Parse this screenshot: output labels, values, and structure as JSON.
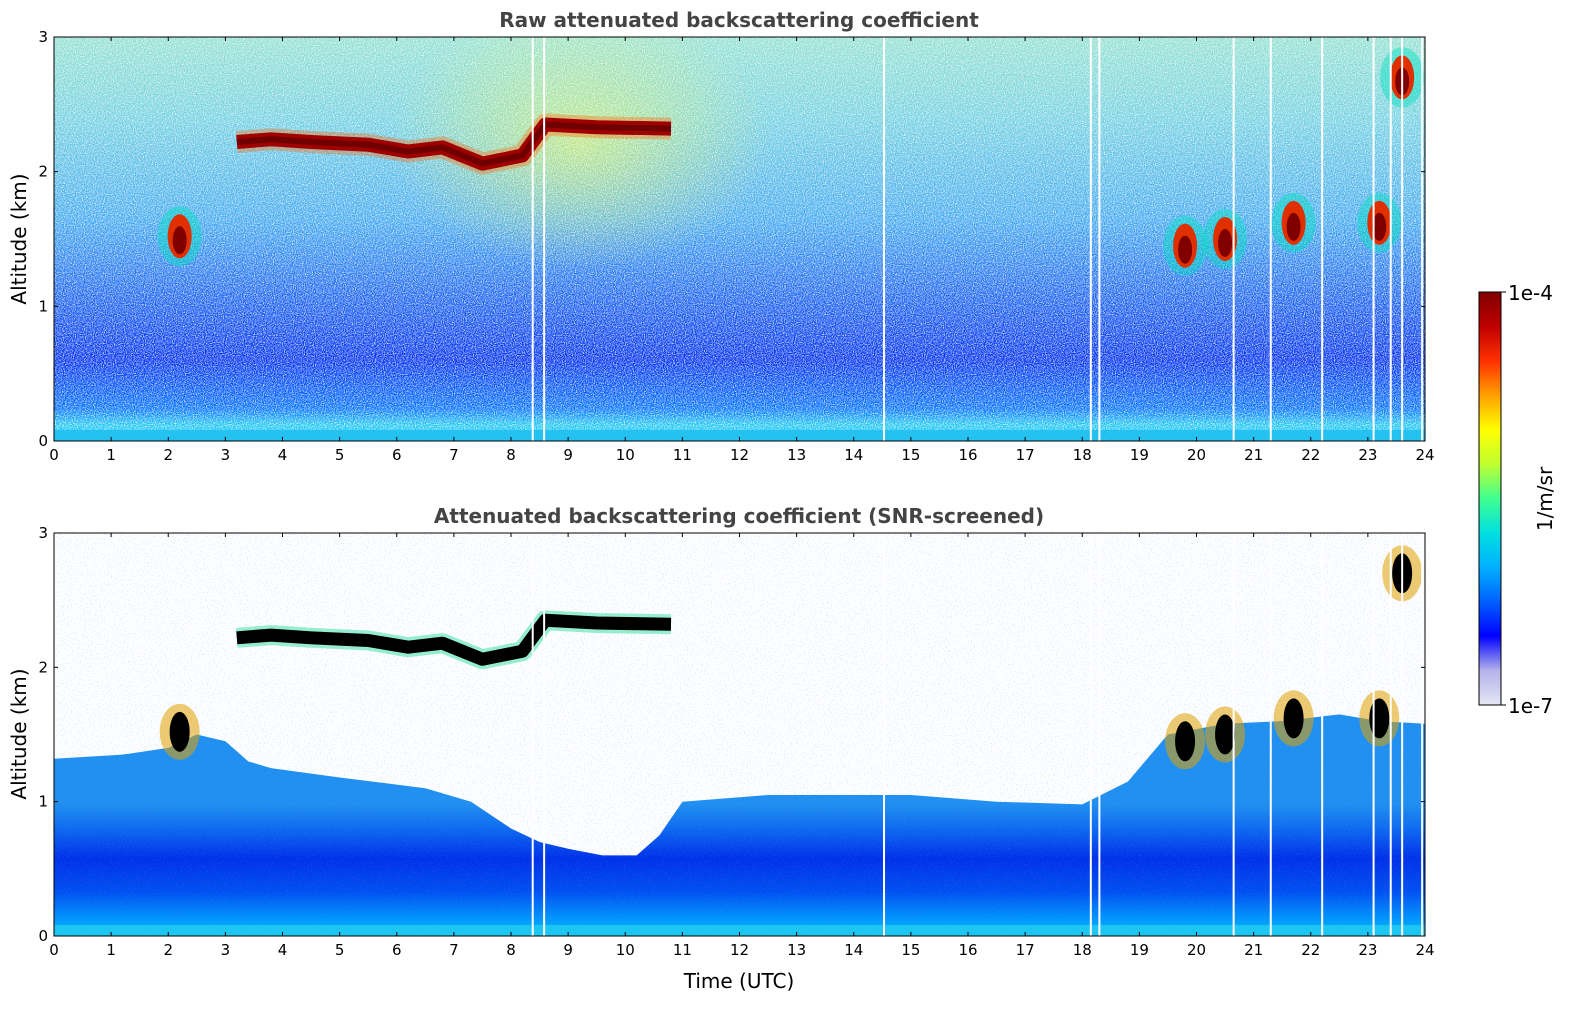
{
  "chart_data": [
    {
      "type": "heatmap",
      "title": "Raw attenuated backscattering coefficient",
      "xlabel": "",
      "ylabel": "Altitude (km)",
      "x_ticks": [
        "0",
        "1",
        "2",
        "3",
        "4",
        "5",
        "6",
        "7",
        "8",
        "9",
        "10",
        "11",
        "12",
        "13",
        "14",
        "15",
        "16",
        "17",
        "18",
        "19",
        "20",
        "21",
        "22",
        "23",
        "24"
      ],
      "y_ticks": [
        "0",
        "1",
        "2",
        "3"
      ],
      "xlim": [
        0,
        24
      ],
      "ylim": [
        0,
        3
      ],
      "features": [
        {
          "kind": "cloud_layer",
          "name": "cloud",
          "segments": [
            [
              3.2,
              2.22
            ],
            [
              3.8,
              2.24
            ],
            [
              4.5,
              2.22
            ],
            [
              5.5,
              2.2
            ],
            [
              6.2,
              2.15
            ],
            [
              6.8,
              2.18
            ],
            [
              7.5,
              2.06
            ],
            [
              8.2,
              2.12
            ],
            [
              8.6,
              2.35
            ],
            [
              9.5,
              2.33
            ],
            [
              10.8,
              2.32
            ]
          ]
        },
        {
          "kind": "cloud_patch",
          "x": 2.2,
          "y": 1.52
        },
        {
          "kind": "cloud_patch",
          "x": 19.8,
          "y": 1.45
        },
        {
          "kind": "cloud_patch",
          "x": 20.5,
          "y": 1.5
        },
        {
          "kind": "cloud_patch",
          "x": 21.7,
          "y": 1.62
        },
        {
          "kind": "cloud_patch",
          "x": 23.2,
          "y": 1.62
        },
        {
          "kind": "cloud_patch",
          "x": 23.6,
          "y": 2.7
        }
      ],
      "gap_times": [
        8.38,
        8.58,
        14.53,
        18.15,
        18.3,
        20.65,
        21.3,
        22.2,
        23.1,
        23.4,
        23.6,
        23.95
      ]
    },
    {
      "type": "heatmap",
      "title": "Attenuated backscattering coefficient (SNR-screened)",
      "xlabel": "Time (UTC)",
      "ylabel": "Altitude (km)",
      "x_ticks": [
        "0",
        "1",
        "2",
        "3",
        "4",
        "5",
        "6",
        "7",
        "8",
        "9",
        "10",
        "11",
        "12",
        "13",
        "14",
        "15",
        "16",
        "17",
        "18",
        "19",
        "20",
        "21",
        "22",
        "23",
        "24"
      ],
      "y_ticks": [
        "0",
        "1",
        "2",
        "3"
      ],
      "xlim": [
        0,
        24
      ],
      "ylim": [
        0,
        3
      ],
      "gap_times": [
        8.38,
        8.58,
        14.53,
        18.15,
        18.3,
        20.65,
        21.3,
        22.2,
        23.1,
        23.4,
        23.6,
        23.95
      ]
    }
  ],
  "colorbar": {
    "label": "1/m/sr",
    "max_label": "1e-4",
    "min_label": "1e-7",
    "colormap": [
      "#e6e6f5",
      "#b3b3ea",
      "#0000ff",
      "#0060ff",
      "#00b0ff",
      "#00e0e0",
      "#40ff90",
      "#c0ff30",
      "#ffff00",
      "#ffa000",
      "#ff3000",
      "#c00000",
      "#800000"
    ]
  }
}
